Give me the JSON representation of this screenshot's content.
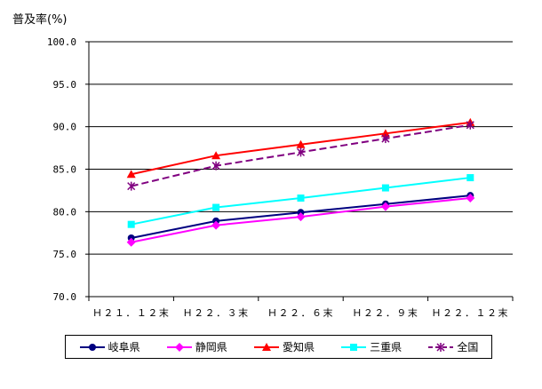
{
  "chart_data": {
    "type": "line",
    "ylabel": "普及率(%)",
    "xlabel": "",
    "title": "",
    "ylim": [
      70,
      100
    ],
    "yticks": [
      "100.0",
      "95.0",
      "90.0",
      "85.0",
      "80.0",
      "75.0",
      "70.0"
    ],
    "categories": [
      "H21.12末",
      "H22.3末",
      "H22.6末",
      "H22.9末",
      "H22.12末"
    ],
    "category_labels": [
      "Ｈ２１．１２末",
      "Ｈ２２．３末",
      "Ｈ２２．６末",
      "Ｈ２２．９末",
      "Ｈ２２．１２末"
    ],
    "grid": "horizontal",
    "legend_position": "bottom",
    "series": [
      {
        "name": "岐阜県",
        "color": "#000080",
        "marker": "circle",
        "dash": false,
        "values": [
          76.9,
          78.9,
          79.9,
          80.9,
          81.9
        ]
      },
      {
        "name": "静岡県",
        "color": "#ff00ff",
        "marker": "diamond",
        "dash": false,
        "values": [
          76.4,
          78.4,
          79.4,
          80.6,
          81.6
        ]
      },
      {
        "name": "愛知県",
        "color": "#ff0000",
        "marker": "triangle",
        "dash": false,
        "values": [
          84.4,
          86.6,
          87.9,
          89.2,
          90.5
        ]
      },
      {
        "name": "三重県",
        "color": "#00ffff",
        "marker": "square",
        "dash": false,
        "values": [
          78.5,
          80.5,
          81.6,
          82.8,
          84.0
        ]
      },
      {
        "name": "全国",
        "color": "#800080",
        "marker": "star",
        "dash": true,
        "values": [
          83.0,
          85.4,
          87.0,
          88.6,
          90.2
        ]
      }
    ]
  }
}
